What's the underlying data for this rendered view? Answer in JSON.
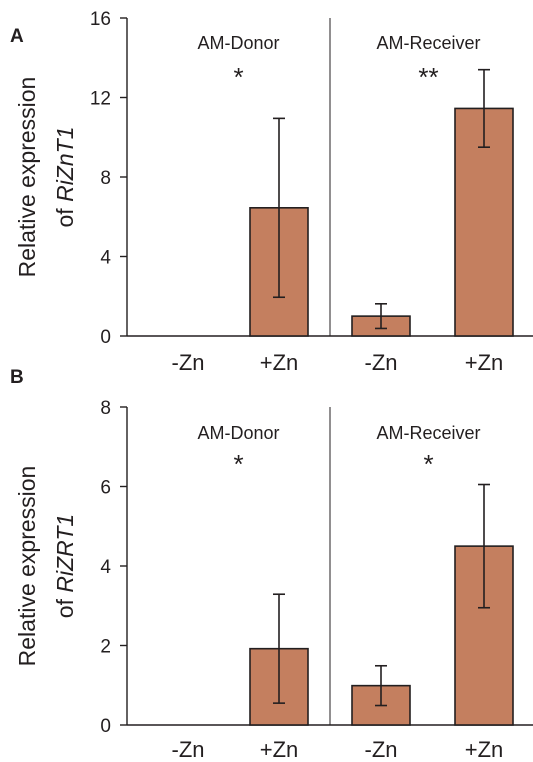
{
  "chart_data": [
    {
      "type": "bar",
      "panel": "A",
      "categories": [
        "-Zn",
        "+Zn",
        "-Zn",
        "+Zn"
      ],
      "groups": [
        "AM-Donor",
        "AM-Receiver"
      ],
      "group_markers": [
        "*",
        "**"
      ],
      "values": [
        0,
        6.45,
        1.0,
        11.45
      ],
      "errors": [
        0,
        4.5,
        0.62,
        1.95
      ],
      "ylabel": "Relative expression",
      "ylabel_prefix": "of",
      "ylabel_gene": "RiZnT1",
      "ylim": [
        0,
        16
      ],
      "yticks": [
        0,
        4,
        8,
        12,
        16
      ],
      "bar_color": "#c47f5f"
    },
    {
      "type": "bar",
      "panel": "B",
      "categories": [
        "-Zn",
        "+Zn",
        "-Zn",
        "+Zn"
      ],
      "groups": [
        "AM-Donor",
        "AM-Receiver"
      ],
      "group_markers": [
        "*",
        "*"
      ],
      "values": [
        0,
        1.92,
        0.99,
        4.5
      ],
      "errors": [
        0,
        1.37,
        0.5,
        1.55
      ],
      "ylabel": "Relative expression",
      "ylabel_prefix": "of",
      "ylabel_gene": "RiZRT1",
      "ylim": [
        0,
        8
      ],
      "yticks": [
        0,
        2,
        4,
        6,
        8
      ],
      "bar_color": "#c47f5f"
    }
  ]
}
